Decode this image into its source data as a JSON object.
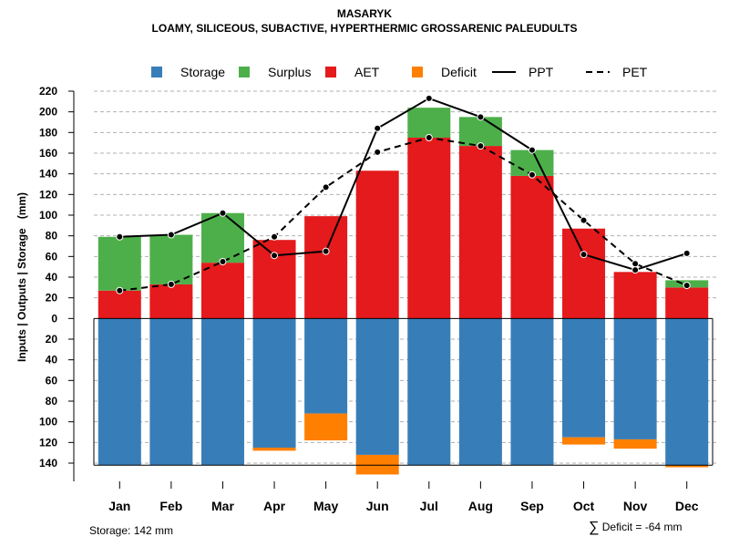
{
  "title": "MASARYK",
  "subtitle": "LOAMY, SILICEOUS, SUBACTIVE, HYPERTHERMIC GROSSARENIC PALEUDULTS",
  "footer": {
    "storage_text": "Storage: 142 mm",
    "deficit_symbol": "∑",
    "deficit_text": "Deficit = -64 mm"
  },
  "chart_data": {
    "type": "bar",
    "title": "MASARYK",
    "ylabel": "Inputs | Outputs | Storage   (mm)",
    "xlabel": "",
    "ylim": [
      -140,
      220
    ],
    "yticks": [
      {
        "value": 220,
        "label": "220"
      },
      {
        "value": 200,
        "label": "200"
      },
      {
        "value": 180,
        "label": "180"
      },
      {
        "value": 160,
        "label": "160"
      },
      {
        "value": 140,
        "label": "140"
      },
      {
        "value": 120,
        "label": "120"
      },
      {
        "value": 100,
        "label": "100"
      },
      {
        "value": 80,
        "label": "80"
      },
      {
        "value": 60,
        "label": "60"
      },
      {
        "value": 40,
        "label": "40"
      },
      {
        "value": 20,
        "label": "20"
      },
      {
        "value": 0,
        "label": "0"
      },
      {
        "value": -20,
        "label": "20"
      },
      {
        "value": -40,
        "label": "40"
      },
      {
        "value": -60,
        "label": "60"
      },
      {
        "value": -80,
        "label": "80"
      },
      {
        "value": -100,
        "label": "100"
      },
      {
        "value": -120,
        "label": "120"
      },
      {
        "value": -140,
        "label": "140"
      }
    ],
    "categories": [
      "Jan",
      "Feb",
      "Mar",
      "Apr",
      "May",
      "Jun",
      "Jul",
      "Aug",
      "Sep",
      "Oct",
      "Nov",
      "Dec"
    ],
    "legend": [
      {
        "name": "Storage",
        "kind": "box",
        "color": "#377eb8"
      },
      {
        "name": "Surplus",
        "kind": "box",
        "color": "#4daf4a"
      },
      {
        "name": "AET",
        "kind": "box",
        "color": "#e41a1c"
      },
      {
        "name": "Deficit",
        "kind": "box",
        "color": "#ff7f00"
      },
      {
        "name": "PPT",
        "kind": "solid",
        "color": "#000000"
      },
      {
        "name": "PET",
        "kind": "dashed",
        "color": "#000000"
      }
    ],
    "series": [
      {
        "name": "AET",
        "values": [
          27,
          33,
          54,
          76,
          99,
          143,
          175,
          167,
          138,
          87,
          45,
          30
        ]
      },
      {
        "name": "Surplus",
        "values": [
          52,
          48,
          48,
          0,
          0,
          0,
          29,
          28,
          25,
          0,
          0,
          7
        ]
      },
      {
        "name": "Storage",
        "values": [
          142,
          142,
          142,
          125,
          92,
          132,
          142,
          142,
          142,
          115,
          117,
          142
        ]
      },
      {
        "name": "Deficit",
        "values": [
          0,
          0,
          0,
          3,
          26,
          19,
          0,
          0,
          0,
          7,
          9,
          2
        ]
      },
      {
        "name": "PPT",
        "values": [
          79,
          81,
          102,
          61,
          65,
          184,
          213,
          195,
          163,
          62,
          47,
          63
        ]
      },
      {
        "name": "PET",
        "values": [
          27,
          33,
          55,
          79,
          127,
          161,
          175,
          167,
          139,
          95,
          53,
          32
        ]
      }
    ],
    "storage_capacity": 142,
    "total_deficit": -64,
    "grid": true
  }
}
